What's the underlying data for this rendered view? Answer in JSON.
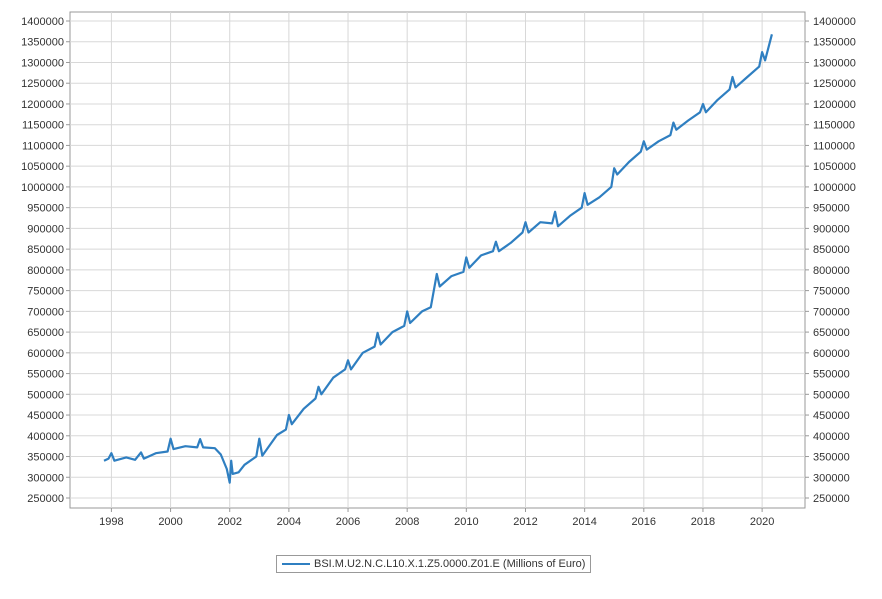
{
  "chart_data": {
    "type": "line",
    "title": "",
    "xlabel": "",
    "ylabel": "",
    "xlim": [
      1996.6,
      2021.45
    ],
    "ylim": [
      225900,
      1421700
    ],
    "x_ticks": [
      "1998",
      "2000",
      "2002",
      "2004",
      "2006",
      "2008",
      "2010",
      "2012",
      "2014",
      "2016",
      "2018",
      "2020"
    ],
    "y_ticks": [
      "250000",
      "300000",
      "350000",
      "400000",
      "450000",
      "500000",
      "550000",
      "600000",
      "650000",
      "700000",
      "750000",
      "800000",
      "850000",
      "900000",
      "950000",
      "1000000",
      "1050000",
      "1100000",
      "1150000",
      "1200000",
      "1250000",
      "1300000",
      "1350000",
      "1400000"
    ],
    "grid": true,
    "legend_position": "bottom-center",
    "color": "#2f7fc1",
    "series": [
      {
        "name": "BSI.M.U2.N.C.L10.X.1.Z5.0000.Z01.E (Millions of Euro)",
        "x": [
          1997.75,
          1997.9,
          1998.0,
          1998.1,
          1998.5,
          1998.8,
          1999.0,
          1999.1,
          1999.5,
          1999.9,
          2000.0,
          2000.1,
          2000.5,
          2000.9,
          2001.0,
          2001.1,
          2001.5,
          2001.7,
          2001.9,
          2002.0,
          2002.05,
          2002.1,
          2002.3,
          2002.5,
          2002.9,
          2003.0,
          2003.1,
          2003.3,
          2003.6,
          2003.9,
          2004.0,
          2004.1,
          2004.5,
          2004.9,
          2005.0,
          2005.1,
          2005.5,
          2005.9,
          2006.0,
          2006.1,
          2006.5,
          2006.9,
          2007.0,
          2007.1,
          2007.5,
          2007.9,
          2008.0,
          2008.1,
          2008.5,
          2008.8,
          2008.9,
          2009.0,
          2009.1,
          2009.5,
          2009.9,
          2010.0,
          2010.1,
          2010.5,
          2010.9,
          2011.0,
          2011.1,
          2011.5,
          2011.9,
          2012.0,
          2012.1,
          2012.5,
          2012.9,
          2013.0,
          2013.1,
          2013.5,
          2013.9,
          2014.0,
          2014.1,
          2014.5,
          2014.9,
          2015.0,
          2015.1,
          2015.5,
          2015.9,
          2016.0,
          2016.1,
          2016.5,
          2016.9,
          2017.0,
          2017.1,
          2017.5,
          2017.9,
          2018.0,
          2018.1,
          2018.5,
          2018.9,
          2019.0,
          2019.1,
          2019.5,
          2019.9,
          2020.0,
          2020.1,
          2020.33
        ],
        "values": [
          340000,
          345000,
          358000,
          340000,
          348000,
          342000,
          360000,
          345000,
          358000,
          362000,
          393000,
          368000,
          375000,
          372000,
          392000,
          372000,
          370000,
          355000,
          320000,
          287000,
          340000,
          308000,
          312000,
          330000,
          350000,
          393000,
          352000,
          372000,
          402000,
          415000,
          450000,
          428000,
          465000,
          490000,
          518000,
          500000,
          540000,
          560000,
          582000,
          560000,
          600000,
          615000,
          648000,
          620000,
          650000,
          665000,
          700000,
          672000,
          700000,
          710000,
          750000,
          790000,
          760000,
          785000,
          795000,
          830000,
          805000,
          835000,
          845000,
          868000,
          845000,
          865000,
          890000,
          915000,
          890000,
          915000,
          912000,
          940000,
          905000,
          930000,
          950000,
          985000,
          957000,
          975000,
          1000000,
          1045000,
          1030000,
          1060000,
          1085000,
          1110000,
          1090000,
          1110000,
          1125000,
          1155000,
          1138000,
          1160000,
          1180000,
          1200000,
          1180000,
          1210000,
          1235000,
          1265000,
          1240000,
          1265000,
          1290000,
          1325000,
          1305000,
          1368000
        ]
      }
    ]
  }
}
